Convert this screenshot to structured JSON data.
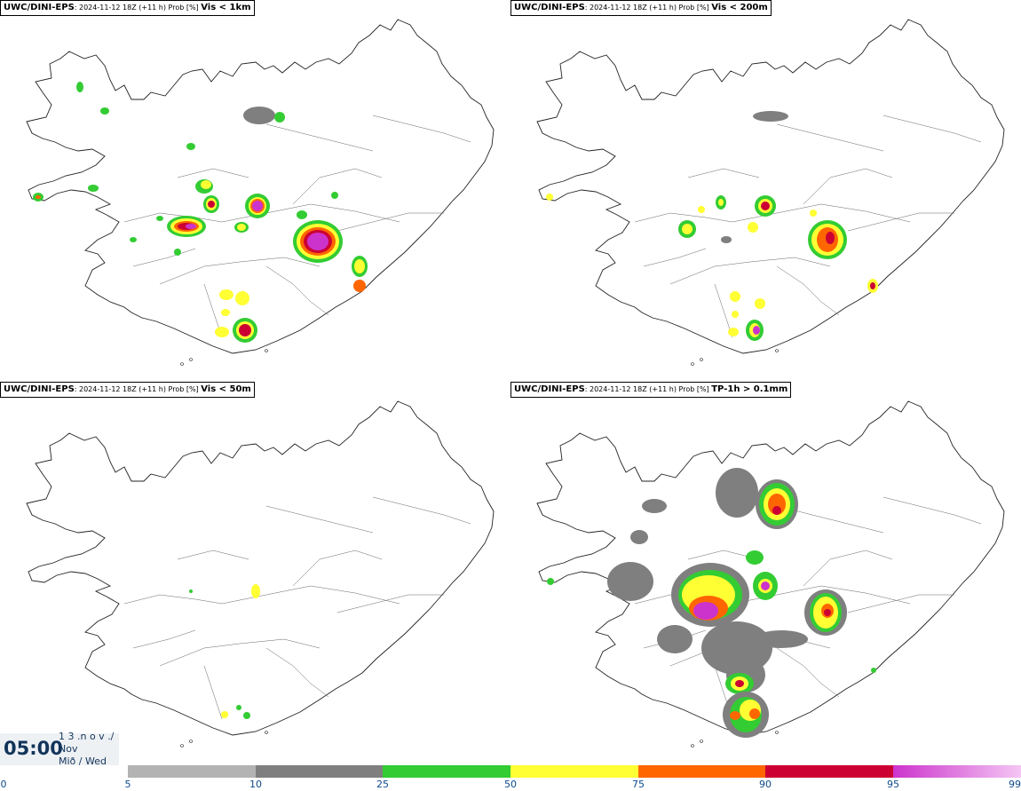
{
  "panels": [
    {
      "model": "UWC/DINI-EPS",
      "run": ": 2024-11-12 18Z (+11 h) Prob [%]",
      "param": "Vis < 1km"
    },
    {
      "model": "UWC/DINI-EPS",
      "run": ": 2024-11-12 18Z (+11 h) Prob [%]",
      "param": "Vis < 200m"
    },
    {
      "model": "UWC/DINI-EPS",
      "run": ": 2024-11-12 18Z (+11 h) Prob [%]",
      "param": "Vis < 50m"
    },
    {
      "model": "UWC/DINI-EPS",
      "run": ": 2024-11-12 18Z (+11 h) Prob [%]",
      "param": "TP-1h > 0.1mm"
    }
  ],
  "timestamp": {
    "time": "05:00",
    "line1": "1 3 .n o v ./",
    "line2": "Nov",
    "line3": "Mið / Wed"
  },
  "colorbar": {
    "ticks": [
      "0",
      "5",
      "10",
      "25",
      "50",
      "75",
      "90",
      "95",
      "99"
    ],
    "colors": [
      "#b3b3b3",
      "#7f7f7f",
      "#33cc33",
      "#ffff33",
      "#ff6600",
      "#cc0033",
      "#cc33cc",
      "#f4c6f4"
    ]
  }
}
